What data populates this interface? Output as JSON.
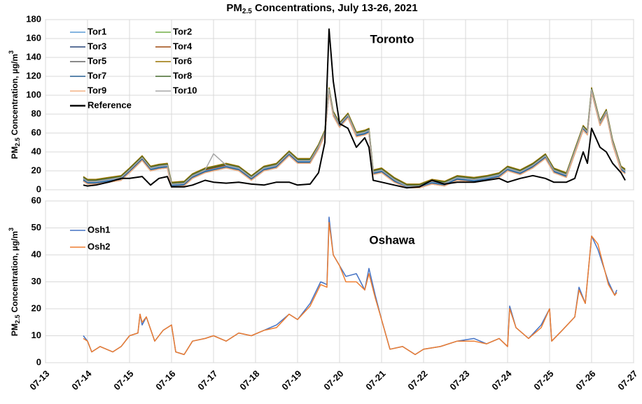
{
  "title": [
    "PM",
    "2.5",
    " Concentrations, July 13-26, 2021"
  ],
  "chart_data": [
    {
      "type": "line",
      "annotation": "Toronto",
      "y_label": [
        "PM",
        "2.5",
        " Concentration, µg/m",
        "3"
      ],
      "xlim": [
        13,
        27
      ],
      "xticks": [
        13,
        14,
        15,
        16,
        17,
        18,
        19,
        20,
        21,
        22,
        23,
        24,
        25,
        26,
        27
      ],
      "ylim": [
        0,
        180
      ],
      "yticks": [
        0,
        20,
        40,
        60,
        80,
        100,
        120,
        140,
        160,
        180
      ],
      "grid": true,
      "legend": "upper left",
      "x": [
        13.9,
        14.0,
        14.2,
        14.5,
        14.8,
        15.0,
        15.3,
        15.5,
        15.7,
        15.9,
        16.0,
        16.3,
        16.5,
        16.8,
        17.0,
        17.3,
        17.6,
        17.9,
        18.2,
        18.5,
        18.8,
        19.0,
        19.3,
        19.5,
        19.65,
        19.75,
        19.85,
        20.0,
        20.2,
        20.4,
        20.6,
        20.7,
        20.8,
        21.0,
        21.3,
        21.6,
        21.9,
        22.2,
        22.5,
        22.8,
        23.2,
        23.5,
        23.8,
        24.0,
        24.3,
        24.6,
        24.9,
        25.1,
        25.4,
        25.6,
        25.8,
        25.9,
        26.0,
        26.2,
        26.35,
        26.5,
        26.7,
        26.8
      ],
      "series": [
        {
          "name": "Tor1",
          "color": "#5b9bd5",
          "values": [
            11,
            8,
            8,
            10,
            12,
            20,
            33,
            22,
            24,
            25,
            5,
            6,
            14,
            20,
            22,
            25,
            22,
            12,
            22,
            25,
            38,
            30,
            30,
            45,
            60,
            105,
            80,
            68,
            78,
            58,
            60,
            62,
            18,
            20,
            10,
            3,
            3,
            8,
            6,
            12,
            10,
            12,
            15,
            22,
            18,
            25,
            35,
            20,
            15,
            40,
            65,
            60,
            105,
            70,
            82,
            50,
            22,
            19
          ]
        },
        {
          "name": "Tor2",
          "color": "#70ad47",
          "values": [
            13,
            10,
            10,
            12,
            14,
            22,
            35,
            24,
            26,
            27,
            7,
            8,
            16,
            22,
            24,
            27,
            24,
            14,
            24,
            27,
            40,
            32,
            32,
            47,
            62,
            107,
            82,
            70,
            80,
            60,
            62,
            64,
            20,
            22,
            12,
            5,
            5,
            10,
            8,
            14,
            12,
            14,
            17,
            24,
            20,
            27,
            37,
            22,
            17,
            42,
            67,
            62,
            107,
            72,
            84,
            52,
            24,
            21
          ]
        },
        {
          "name": "Tor3",
          "color": "#264478",
          "values": [
            10,
            7,
            7,
            9,
            11,
            19,
            32,
            21,
            23,
            24,
            4,
            5,
            13,
            19,
            21,
            24,
            21,
            11,
            21,
            24,
            37,
            29,
            29,
            44,
            59,
            104,
            79,
            67,
            77,
            57,
            59,
            61,
            17,
            19,
            9,
            2,
            2,
            7,
            5,
            11,
            9,
            11,
            14,
            21,
            17,
            24,
            34,
            19,
            14,
            39,
            64,
            59,
            104,
            69,
            81,
            49,
            21,
            18
          ]
        },
        {
          "name": "Tor4",
          "color": "#9e480e",
          "values": [
            12,
            9,
            9,
            11,
            13,
            21,
            34,
            23,
            25,
            26,
            6,
            7,
            15,
            21,
            23,
            26,
            23,
            13,
            23,
            26,
            39,
            31,
            31,
            46,
            61,
            106,
            81,
            69,
            79,
            59,
            61,
            63,
            19,
            21,
            11,
            4,
            4,
            9,
            7,
            13,
            11,
            13,
            16,
            23,
            19,
            26,
            36,
            21,
            16,
            41,
            66,
            61,
            106,
            71,
            83,
            51,
            23,
            20
          ]
        },
        {
          "name": "Tor5",
          "color": "#636363",
          "values": [
            9,
            6,
            6,
            8,
            10,
            18,
            31,
            20,
            22,
            23,
            3,
            4,
            12,
            18,
            20,
            23,
            20,
            10,
            20,
            23,
            36,
            28,
            28,
            43,
            58,
            103,
            78,
            66,
            76,
            56,
            58,
            60,
            16,
            18,
            8,
            2,
            2,
            6,
            4,
            10,
            8,
            10,
            13,
            20,
            16,
            23,
            33,
            18,
            13,
            38,
            63,
            58,
            103,
            68,
            80,
            48,
            20,
            17
          ]
        },
        {
          "name": "Tor6",
          "color": "#997300",
          "values": [
            14,
            11,
            11,
            13,
            15,
            23,
            36,
            25,
            27,
            28,
            8,
            9,
            17,
            23,
            25,
            28,
            25,
            15,
            25,
            28,
            41,
            33,
            33,
            48,
            63,
            108,
            83,
            71,
            81,
            61,
            63,
            65,
            21,
            23,
            13,
            6,
            6,
            11,
            9,
            15,
            13,
            15,
            18,
            25,
            21,
            28,
            38,
            23,
            18,
            43,
            68,
            63,
            108,
            73,
            85,
            53,
            25,
            22
          ]
        },
        {
          "name": "Tor7",
          "color": "#255e91",
          "values": [
            10,
            7,
            7,
            9,
            11,
            19,
            32,
            21,
            23,
            24,
            4,
            5,
            13,
            19,
            21,
            24,
            21,
            11,
            21,
            24,
            37,
            29,
            29,
            44,
            59,
            104,
            79,
            67,
            77,
            57,
            59,
            61,
            17,
            19,
            9,
            2,
            2,
            7,
            5,
            11,
            9,
            11,
            14,
            21,
            17,
            24,
            34,
            19,
            14,
            39,
            64,
            59,
            104,
            69,
            81,
            49,
            21,
            18
          ]
        },
        {
          "name": "Tor8",
          "color": "#43682b",
          "values": [
            13,
            10,
            10,
            12,
            14,
            22,
            35,
            24,
            26,
            27,
            7,
            8,
            16,
            22,
            24,
            27,
            24,
            14,
            24,
            27,
            40,
            32,
            32,
            47,
            62,
            107,
            82,
            70,
            80,
            60,
            62,
            64,
            20,
            22,
            12,
            5,
            5,
            10,
            8,
            14,
            12,
            14,
            17,
            24,
            20,
            27,
            37,
            22,
            17,
            42,
            67,
            62,
            107,
            72,
            84,
            52,
            24,
            21
          ]
        },
        {
          "name": "Tor9",
          "color": "#f4b183",
          "values": [
            9,
            6,
            6,
            8,
            10,
            18,
            31,
            20,
            22,
            23,
            3,
            4,
            12,
            18,
            20,
            23,
            20,
            10,
            20,
            23,
            36,
            28,
            28,
            43,
            58,
            103,
            78,
            66,
            76,
            56,
            58,
            60,
            16,
            18,
            8,
            2,
            2,
            6,
            4,
            10,
            8,
            10,
            13,
            20,
            16,
            23,
            33,
            18,
            13,
            38,
            63,
            58,
            103,
            68,
            80,
            48,
            20,
            17
          ]
        },
        {
          "name": "Tor10",
          "color": "#a5a5a5",
          "values": [
            12,
            9,
            9,
            11,
            13,
            21,
            34,
            23,
            25,
            26,
            6,
            7,
            15,
            21,
            38,
            26,
            23,
            13,
            23,
            26,
            39,
            31,
            31,
            46,
            61,
            106,
            81,
            69,
            79,
            59,
            61,
            63,
            19,
            21,
            11,
            4,
            4,
            9,
            7,
            13,
            11,
            13,
            16,
            23,
            19,
            26,
            36,
            21,
            16,
            41,
            66,
            61,
            106,
            71,
            83,
            51,
            23,
            20
          ]
        },
        {
          "name": "Reference",
          "color": "#000000",
          "values": [
            5,
            4,
            5,
            8,
            12,
            12,
            14,
            5,
            12,
            14,
            3,
            3,
            5,
            10,
            8,
            7,
            8,
            6,
            5,
            8,
            8,
            5,
            6,
            18,
            50,
            170,
            115,
            70,
            65,
            45,
            55,
            45,
            10,
            8,
            5,
            2,
            3,
            10,
            6,
            8,
            8,
            10,
            12,
            8,
            12,
            15,
            12,
            8,
            8,
            12,
            40,
            28,
            65,
            45,
            40,
            28,
            18,
            10
          ]
        }
      ]
    },
    {
      "type": "line",
      "annotation": "Oshawa",
      "y_label": [
        "PM",
        "2.5",
        " Concentration, µg/m",
        "3"
      ],
      "xlim": [
        13,
        27
      ],
      "xticks": [
        {
          "value": 13,
          "label": "07-13"
        },
        {
          "value": 14,
          "label": "07-14"
        },
        {
          "value": 15,
          "label": "07-15"
        },
        {
          "value": 16,
          "label": "07-16"
        },
        {
          "value": 17,
          "label": "07-17"
        },
        {
          "value": 18,
          "label": "07-18"
        },
        {
          "value": 19,
          "label": "07-19"
        },
        {
          "value": 20,
          "label": "07-20"
        },
        {
          "value": 21,
          "label": "07-21"
        },
        {
          "value": 22,
          "label": "07-22"
        },
        {
          "value": 23,
          "label": "07-23"
        },
        {
          "value": 24,
          "label": "07-24"
        },
        {
          "value": 25,
          "label": "07-25"
        },
        {
          "value": 26,
          "label": "07-26"
        },
        {
          "value": 27,
          "label": "07-27"
        }
      ],
      "ylim": [
        0,
        60
      ],
      "yticks": [
        0,
        10,
        20,
        30,
        40,
        50,
        60
      ],
      "grid": true,
      "legend": "upper left",
      "x": [
        13.9,
        14.0,
        14.1,
        14.3,
        14.6,
        14.8,
        15.0,
        15.2,
        15.25,
        15.3,
        15.4,
        15.6,
        15.8,
        16.0,
        16.1,
        16.3,
        16.5,
        16.8,
        17.0,
        17.3,
        17.6,
        17.9,
        18.2,
        18.5,
        18.8,
        19.0,
        19.3,
        19.55,
        19.7,
        19.75,
        19.85,
        20.0,
        20.15,
        20.4,
        20.6,
        20.7,
        20.85,
        21.0,
        21.2,
        21.5,
        21.8,
        22.0,
        22.4,
        22.8,
        23.2,
        23.5,
        23.8,
        24.0,
        24.05,
        24.2,
        24.5,
        24.8,
        25.0,
        25.05,
        25.3,
        25.6,
        25.7,
        25.85,
        26.0,
        26.15,
        26.4,
        26.55,
        26.6
      ],
      "series": [
        {
          "name": "Osh1",
          "color": "#4472c4",
          "values": [
            10,
            8,
            4,
            6,
            4,
            6,
            10,
            11,
            18,
            14,
            17,
            8,
            12,
            14,
            4,
            3,
            8,
            9,
            10,
            8,
            11,
            10,
            12,
            14,
            18,
            16,
            22,
            30,
            29,
            54,
            40,
            36,
            32,
            33,
            27,
            35,
            25,
            16,
            5,
            6,
            3,
            5,
            6,
            8,
            9,
            7,
            9,
            6,
            21,
            13,
            9,
            14,
            20,
            8,
            12,
            17,
            28,
            22,
            47,
            42,
            30,
            25,
            27
          ]
        },
        {
          "name": "Osh2",
          "color": "#ed7d31",
          "values": [
            9,
            8,
            4,
            6,
            4,
            6,
            10,
            11,
            18,
            15,
            17,
            8,
            12,
            14,
            4,
            3,
            8,
            9,
            10,
            8,
            11,
            10,
            12,
            13,
            18,
            16,
            21,
            29,
            28,
            52,
            40,
            36,
            30,
            30,
            27,
            33,
            24,
            16,
            5,
            6,
            3,
            5,
            6,
            8,
            8,
            7,
            9,
            6,
            20,
            13,
            9,
            13,
            20,
            8,
            12,
            17,
            27,
            22,
            47,
            44,
            29,
            25,
            26
          ]
        }
      ]
    }
  ]
}
